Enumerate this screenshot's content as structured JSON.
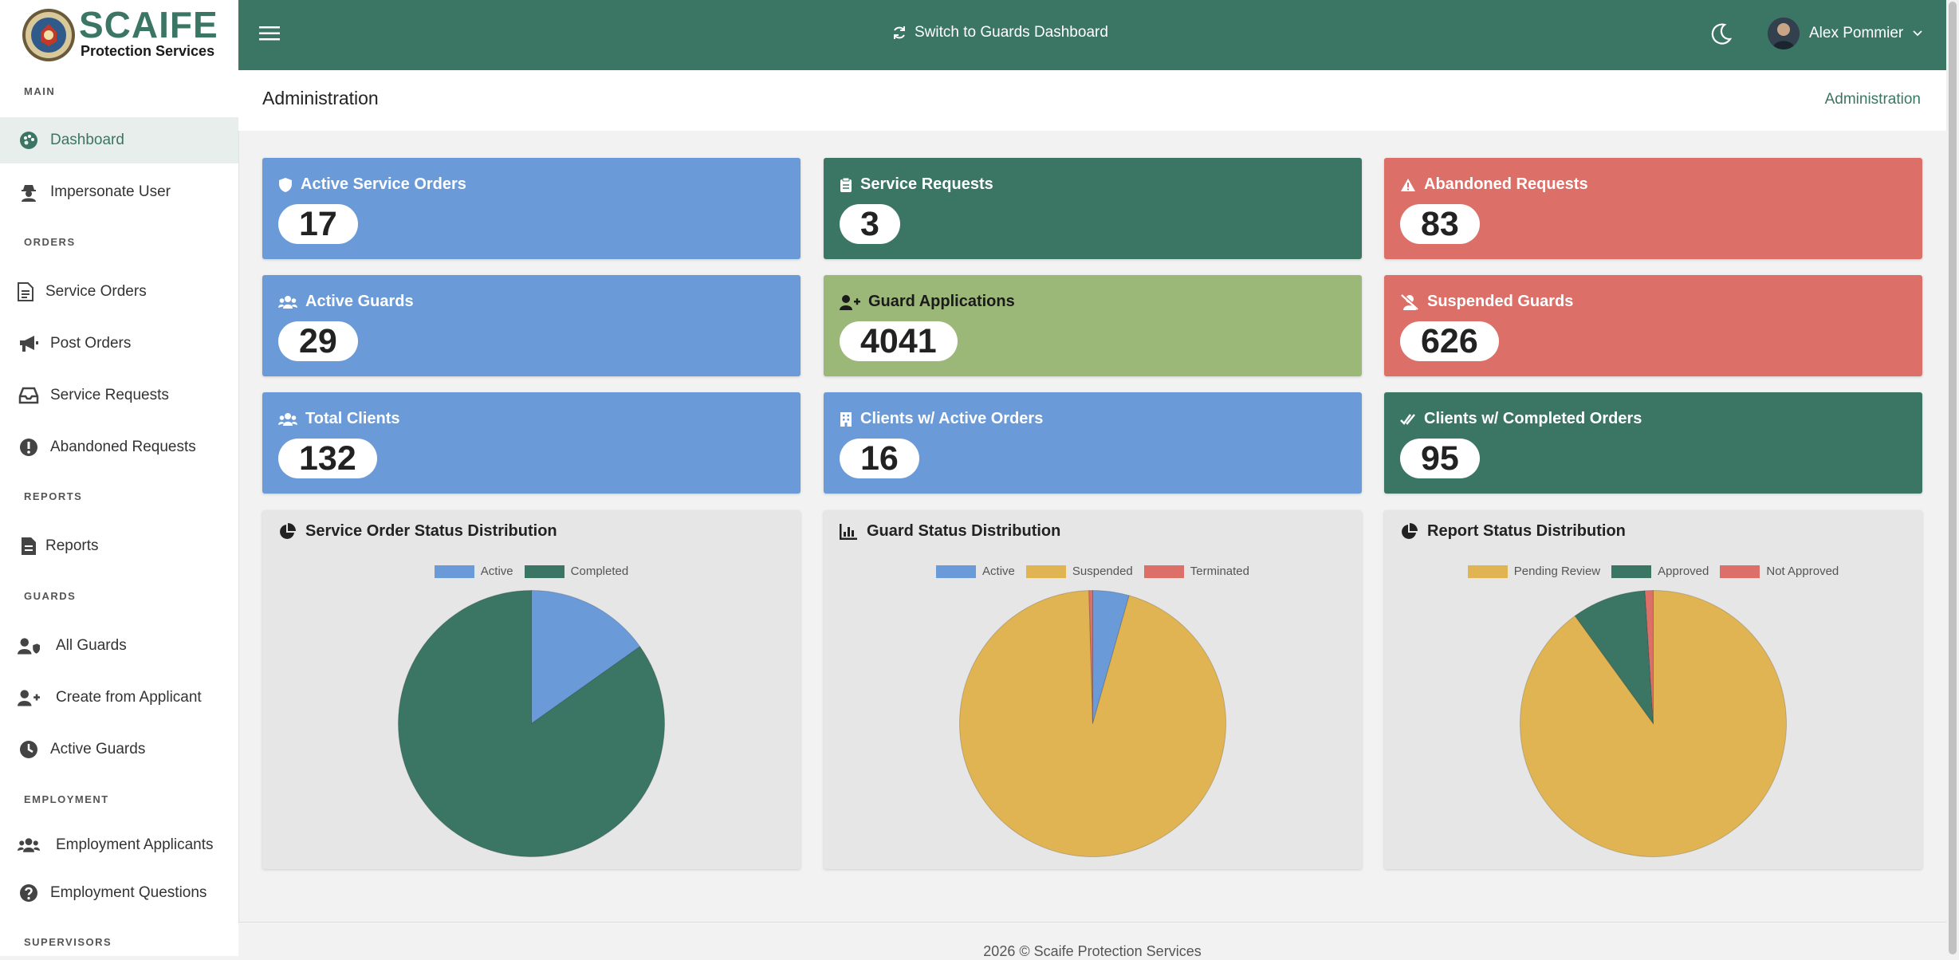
{
  "brand": {
    "name": "SCAIFE",
    "tagline": "Protection Services"
  },
  "sidebar": {
    "sections": {
      "main": "MAIN",
      "orders": "ORDERS",
      "reports": "REPORTS",
      "guards": "GUARDS",
      "employment": "EMPLOYMENT",
      "supervisors": "SUPERVISORS"
    },
    "items": {
      "dashboard": "Dashboard",
      "impersonate": "Impersonate User",
      "service_orders": "Service Orders",
      "post_orders": "Post Orders",
      "service_requests": "Service Requests",
      "abandoned_requests": "Abandoned Requests",
      "reports": "Reports",
      "all_guards": "All Guards",
      "create_from_applicant": "Create from Applicant",
      "active_guards": "Active Guards",
      "employment_applicants": "Employment Applicants",
      "employment_questions": "Employment Questions"
    }
  },
  "topbar": {
    "switch_label": "Switch to Guards Dashboard",
    "user_name": "Alex Pommier"
  },
  "page": {
    "title": "Administration",
    "breadcrumb": "Administration"
  },
  "cards": {
    "active_service_orders": {
      "label": "Active Service Orders",
      "value": "17"
    },
    "service_requests": {
      "label": "Service Requests",
      "value": "3"
    },
    "abandoned_requests": {
      "label": "Abandoned Requests",
      "value": "83"
    },
    "active_guards": {
      "label": "Active Guards",
      "value": "29"
    },
    "guard_applications": {
      "label": "Guard Applications",
      "value": "4041"
    },
    "suspended_guards": {
      "label": "Suspended Guards",
      "value": "626"
    },
    "total_clients": {
      "label": "Total Clients",
      "value": "132"
    },
    "clients_active_orders": {
      "label": "Clients w/ Active Orders",
      "value": "16"
    },
    "clients_completed_orders": {
      "label": "Clients w/ Completed Orders",
      "value": "95"
    }
  },
  "colors": {
    "primary": "#3b7665",
    "blue": "#6a9bd8",
    "red": "#dc7068",
    "olive": "#9cb879",
    "yellow": "#e0b453"
  },
  "chart_data": [
    {
      "type": "pie",
      "title": "Service Order Status Distribution",
      "categories": [
        "Active",
        "Completed"
      ],
      "values": [
        17,
        95
      ],
      "colors": [
        "#6a9bd8",
        "#3b7665"
      ],
      "legend": "top"
    },
    {
      "type": "pie",
      "title": "Guard Status Distribution",
      "categories": [
        "Active",
        "Suspended",
        "Terminated"
      ],
      "values": [
        29,
        626,
        3
      ],
      "colors": [
        "#6a9bd8",
        "#e0b453",
        "#dc7068"
      ],
      "legend": "top"
    },
    {
      "type": "pie",
      "title": "Report Status Distribution",
      "categories": [
        "Pending Review",
        "Approved",
        "Not Approved"
      ],
      "values": [
        90,
        9,
        1
      ],
      "colors": [
        "#e0b453",
        "#3b7665",
        "#dc7068"
      ],
      "legend": "top"
    }
  ],
  "footer": {
    "text": "2026 © Scaife Protection Services"
  }
}
